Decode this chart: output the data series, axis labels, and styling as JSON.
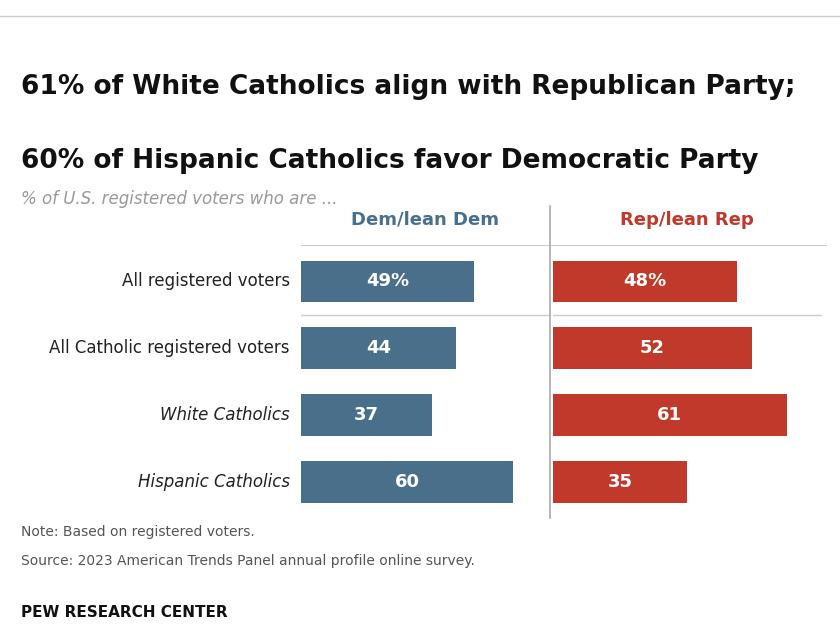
{
  "title_line1": "61% of White Catholics align with Republican Party;",
  "title_line2": "60% of Hispanic Catholics favor Democratic Party",
  "subtitle": "% of U.S. registered voters who are ...",
  "col_header_dem": "Dem/lean Dem",
  "col_header_rep": "Rep/lean Rep",
  "categories": [
    "All registered voters",
    "All Catholic registered voters",
    "White Catholics",
    "Hispanic Catholics"
  ],
  "italic_categories": [
    false,
    false,
    true,
    true
  ],
  "dem_values": [
    49,
    44,
    37,
    60
  ],
  "rep_values": [
    48,
    52,
    61,
    35
  ],
  "dem_labels": [
    "49%",
    "44",
    "37",
    "60"
  ],
  "rep_labels": [
    "48%",
    "52",
    "61",
    "35"
  ],
  "dem_color": "#4a6f8a",
  "rep_color": "#c0392b",
  "background_color": "#ffffff",
  "text_color": "#222222",
  "subtitle_color": "#999999",
  "dem_header_color": "#4a6f8a",
  "rep_header_color": "#c0392b",
  "note_line1": "Note: Based on registered voters.",
  "note_line2": "Source: 2023 American Trends Panel annual profile online survey.",
  "footer": "PEW RESEARCH CENTER",
  "max_value": 70,
  "bar_height": 0.62,
  "title_fontsize": 19,
  "subtitle_fontsize": 12,
  "header_fontsize": 13,
  "label_fontsize": 12,
  "bar_label_fontsize": 13,
  "note_fontsize": 10,
  "footer_fontsize": 11
}
